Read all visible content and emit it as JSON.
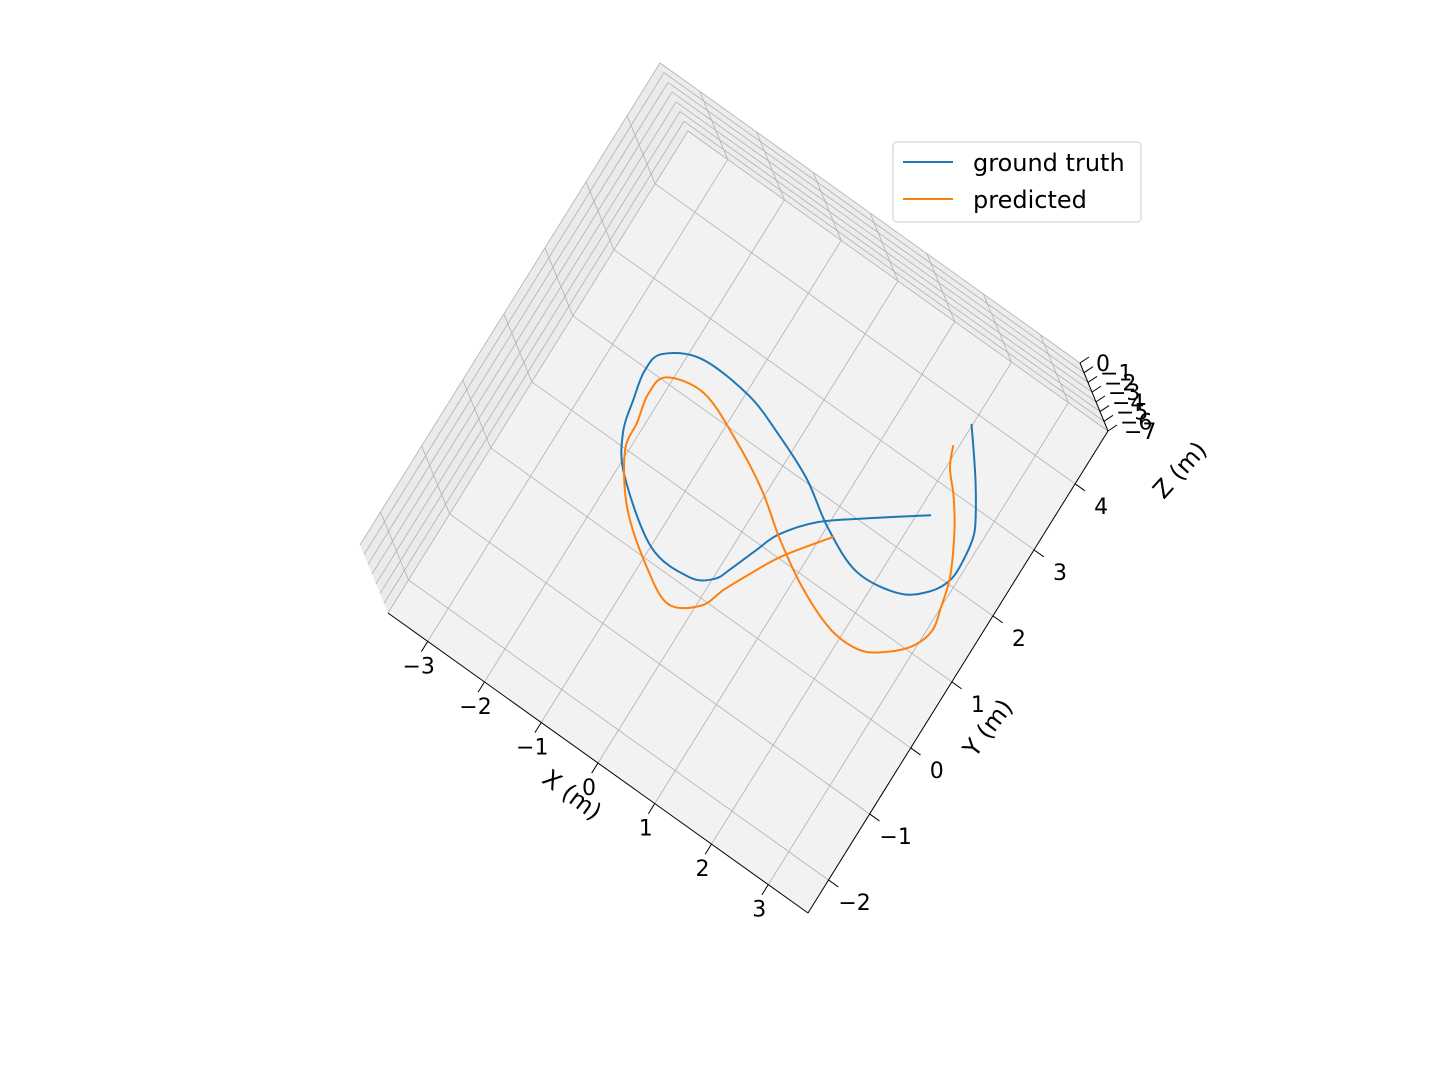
{
  "chart_data": {
    "type": "line",
    "projection": "3d",
    "legend": {
      "placement": "top-right",
      "entries": [
        "ground truth",
        "predicted"
      ]
    },
    "grid": true,
    "xlabel": "X (m)",
    "ylabel": "Y (m)",
    "zlabel": "Z (m)",
    "xlim": [
      -3.7,
      3.7
    ],
    "ylim": [
      -2.5,
      4.8
    ],
    "zlim": [
      -7,
      0
    ],
    "x_ticks": [
      "−3",
      "−2",
      "−1",
      "0",
      "1",
      "2",
      "3"
    ],
    "y_ticks": [
      "−2",
      "−1",
      "0",
      "1",
      "2",
      "3",
      "4"
    ],
    "z_ticks": [
      "0",
      "−1",
      "−2",
      "−3",
      "−4",
      "−5",
      "−6",
      "−7"
    ],
    "series": [
      {
        "name": "ground truth",
        "color": "#1f77b4",
        "x": [
          2.41,
          2.67,
          2.91,
          3.13,
          3.28,
          3.34,
          3.34,
          3.18,
          2.81,
          2.13,
          1.44,
          0.82,
          0.15,
          -0.52,
          -1.38,
          -1.9,
          -1.98,
          -1.9,
          -1.77,
          -1.43,
          -0.56,
          0.13,
          0.45,
          0.58,
          0.74,
          0.9,
          1.28,
          1.9,
          2.61
        ],
        "y": [
          3.6,
          3.3,
          3.01,
          2.71,
          2.46,
          2.16,
          1.82,
          1.54,
          1.28,
          1.19,
          1.44,
          1.79,
          2.04,
          2.23,
          2.26,
          2.01,
          1.71,
          1.33,
          0.89,
          0.46,
          -0.09,
          -0.12,
          0.05,
          0.29,
          0.66,
          1.0,
          1.42,
          1.86,
          2.34
        ],
        "z": [
          -3.5,
          -3.5,
          -3.5,
          -3.5,
          -3.5,
          -3.5,
          -3.5,
          -3.5,
          -3.5,
          -3.5,
          -3.5,
          -3.5,
          -3.5,
          -3.5,
          -3.5,
          -3.5,
          -3.5,
          -3.5,
          -3.5,
          -3.5,
          -3.5,
          -3.5,
          -3.5,
          -3.5,
          -3.5,
          -3.5,
          -3.5,
          -3.5,
          -3.5
        ]
      },
      {
        "name": "predicted",
        "color": "#ff7f0e",
        "x": [
          2.35,
          2.48,
          2.73,
          2.96,
          3.17,
          3.33,
          3.43,
          3.5,
          3.37,
          3.07,
          2.75,
          2.26,
          1.61,
          0.96,
          0.35,
          -0.35,
          -1.09,
          -1.67,
          -1.76,
          -1.68,
          -1.61,
          -1.14,
          -0.45,
          0.08,
          0.49,
          0.65,
          0.82,
          1.1,
          1.59
        ],
        "y": [
          3.24,
          2.98,
          2.72,
          2.43,
          2.1,
          1.79,
          1.45,
          1.13,
          0.82,
          0.55,
          0.39,
          0.39,
          0.61,
          0.95,
          1.34,
          1.67,
          1.92,
          1.8,
          1.49,
          1.12,
          0.72,
          0.13,
          -0.34,
          -0.56,
          -0.33,
          0.01,
          0.32,
          0.79,
          1.39
        ],
        "z": [
          -3.5,
          -3.5,
          -3.5,
          -3.5,
          -3.5,
          -3.5,
          -3.5,
          -3.5,
          -3.5,
          -3.5,
          -3.5,
          -3.5,
          -3.5,
          -3.5,
          -3.5,
          -3.5,
          -3.5,
          -3.5,
          -3.5,
          -3.5,
          -3.5,
          -3.5,
          -3.5,
          -3.5,
          -3.5,
          -3.5,
          -3.5,
          -3.5,
          -3.5
        ]
      }
    ]
  }
}
